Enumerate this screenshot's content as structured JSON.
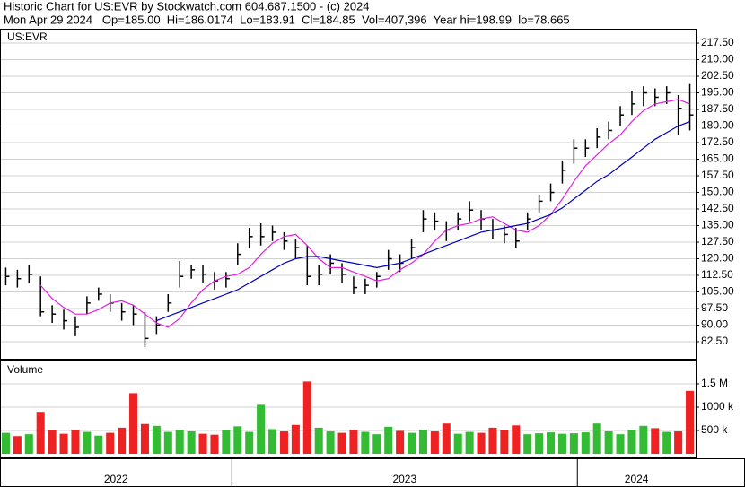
{
  "header": {
    "line1": "Historic Chart for US:EVR by Stockwatch.com 604.687.1500 - (c) 2024",
    "line2": "Mon Apr 29 2024   Op=185.00  Hi=186.0174  Lo=183.91  Cl=184.85  Vol=407,396  Year hi=198.99  lo=78.665"
  },
  "chart_data": [
    {
      "type": "ohlc",
      "title": "US:EVR",
      "color": "#000000",
      "grid": true,
      "xlim": [
        0,
        60
      ],
      "xticks": [
        {
          "value": 0,
          "label": "2022"
        },
        {
          "value": 20,
          "label": "2023"
        },
        {
          "value": 49.8,
          "label": "2024"
        }
      ],
      "ylim": [
        74.8,
        224
      ],
      "yticks": [
        {
          "value": 82.5,
          "label": "82.50"
        },
        {
          "value": 90,
          "label": "90.00"
        },
        {
          "value": 97.5,
          "label": "97.50"
        },
        {
          "value": 105,
          "label": "105.00"
        },
        {
          "value": 112.5,
          "label": "112.50"
        },
        {
          "value": 120,
          "label": "120.00"
        },
        {
          "value": 127.5,
          "label": "127.50"
        },
        {
          "value": 135,
          "label": "135.00"
        },
        {
          "value": 142.5,
          "label": "142.50"
        },
        {
          "value": 150,
          "label": "150.00"
        },
        {
          "value": 157.5,
          "label": "157.50"
        },
        {
          "value": 165,
          "label": "165.00"
        },
        {
          "value": 172.5,
          "label": "172.50"
        },
        {
          "value": 180,
          "label": "180.00"
        },
        {
          "value": 187.5,
          "label": "187.50"
        },
        {
          "value": 195,
          "label": "195.00"
        },
        {
          "value": 202.5,
          "label": "202.50"
        },
        {
          "value": 210,
          "label": "210.00"
        },
        {
          "value": 217.5,
          "label": "217.50"
        }
      ],
      "high": [
        116,
        115,
        117,
        112,
        99,
        97,
        94,
        103,
        107,
        104,
        100,
        99,
        96,
        94,
        104,
        119,
        117,
        117,
        114,
        114,
        127,
        134,
        136,
        135,
        132,
        129,
        126,
        117,
        122,
        118,
        112,
        111,
        114,
        124,
        122,
        129,
        142,
        141,
        137,
        141,
        146,
        142,
        138,
        135,
        134,
        141,
        149,
        154,
        164,
        174,
        174,
        179,
        182,
        189,
        196,
        198,
        197,
        198,
        194,
        199
      ],
      "low": [
        108,
        107,
        109,
        94,
        91,
        88,
        85,
        95,
        101,
        96,
        92,
        90,
        80,
        86,
        96,
        107,
        111,
        109,
        106,
        107,
        117,
        125,
        126,
        128,
        124,
        120,
        108,
        108,
        113,
        109,
        104,
        104,
        107,
        115,
        114,
        120,
        132,
        133,
        128,
        133,
        137,
        133,
        129,
        127,
        125,
        133,
        141,
        146,
        154,
        163,
        166,
        170,
        174,
        180,
        185,
        189,
        189,
        190,
        176,
        178
      ],
      "close": [
        112,
        111,
        113,
        96,
        95,
        92,
        89,
        100,
        104,
        100,
        96,
        95,
        84,
        90,
        100,
        112,
        115,
        113,
        110,
        111,
        122,
        130,
        130,
        132,
        128,
        125,
        112,
        113,
        118,
        113,
        107,
        108,
        112,
        120,
        118,
        125,
        138,
        137,
        133,
        138,
        142,
        138,
        133,
        131,
        128,
        138,
        146,
        150,
        160,
        170,
        170,
        175,
        178,
        185,
        190,
        195,
        193,
        195,
        188,
        185
      ],
      "series": [
        {
          "color": "#e020e0",
          "values": [
            null,
            null,
            null,
            108,
            102,
            98,
            95,
            95,
            97,
            100,
            101,
            99,
            95,
            91,
            89,
            93,
            100,
            106,
            110,
            112,
            113,
            116,
            122,
            127,
            130,
            131,
            126,
            120,
            116,
            116,
            114,
            112,
            110,
            111,
            115,
            118,
            122,
            128,
            133,
            135,
            136,
            138,
            139,
            136,
            133,
            132,
            135,
            140,
            147,
            155,
            162,
            167,
            172,
            176,
            182,
            187,
            190,
            191,
            192,
            190
          ]
        },
        {
          "color": "#0000c0",
          "values": [
            null,
            null,
            null,
            null,
            null,
            null,
            null,
            null,
            null,
            null,
            null,
            null,
            null,
            92,
            94,
            96,
            98,
            100,
            102,
            104,
            106,
            109,
            112,
            115,
            118,
            120,
            121,
            121,
            120,
            119,
            118,
            117,
            116,
            117,
            118,
            120,
            122,
            124,
            126,
            128,
            130,
            132,
            133,
            134,
            135,
            136,
            138,
            140,
            143,
            147,
            151,
            155,
            158,
            162,
            166,
            170,
            174,
            177,
            180,
            182
          ]
        }
      ]
    },
    {
      "type": "bar",
      "title": "Volume",
      "up_color": "#33bb33",
      "down_color": "#ee2222",
      "grid": true,
      "ylim": [
        0,
        2000000
      ],
      "yticks": [
        {
          "value": 500000,
          "label": "500 k"
        },
        {
          "value": 1000000,
          "label": "1000 k"
        },
        {
          "value": 1500000,
          "label": "1.5 M"
        }
      ],
      "values": [
        450000,
        380000,
        420000,
        900000,
        500000,
        430000,
        520000,
        470000,
        390000,
        450000,
        560000,
        1300000,
        640000,
        600000,
        470000,
        520000,
        480000,
        430000,
        410000,
        500000,
        590000,
        470000,
        1050000,
        530000,
        480000,
        620000,
        1550000,
        560000,
        480000,
        450000,
        520000,
        470000,
        420000,
        580000,
        490000,
        450000,
        520000,
        480000,
        650000,
        430000,
        470000,
        450000,
        560000,
        500000,
        610000,
        420000,
        440000,
        460000,
        430000,
        440000,
        460000,
        650000,
        480000,
        420000,
        520000,
        600000,
        550000,
        470000,
        480000,
        1350000
      ]
    }
  ]
}
